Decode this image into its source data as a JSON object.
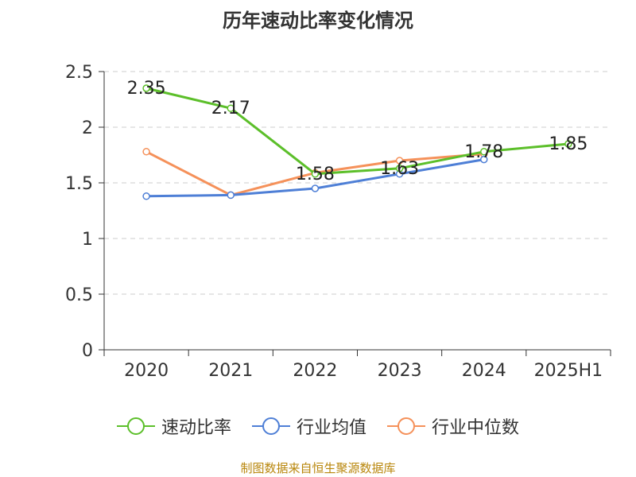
{
  "chart_data": {
    "type": "line",
    "title": "历年速动比率变化情况",
    "categories": [
      "2020",
      "2021",
      "2022",
      "2023",
      "2024",
      "2025H1"
    ],
    "ylim": [
      0,
      2.5
    ],
    "yticks": [
      "0",
      "0.5",
      "1",
      "1.5",
      "2",
      "2.5"
    ],
    "grid": true,
    "legend_position": "bottom",
    "series": [
      {
        "name": "速动比率",
        "color": "#5cbf2a",
        "values": [
          2.35,
          2.17,
          1.58,
          1.63,
          1.78,
          1.85
        ],
        "labels": [
          "2.35",
          "2.17",
          "1.58",
          "1.63",
          "1.78",
          "1.85"
        ]
      },
      {
        "name": "行业均值",
        "color": "#4e7fd6",
        "values": [
          1.38,
          1.39,
          1.45,
          1.58,
          1.71,
          null
        ]
      },
      {
        "name": "行业中位数",
        "color": "#f5915a",
        "values": [
          1.78,
          1.39,
          1.59,
          1.7,
          1.76,
          null
        ]
      }
    ]
  },
  "footer": {
    "source": "制图数据来自恒生聚源数据库"
  }
}
